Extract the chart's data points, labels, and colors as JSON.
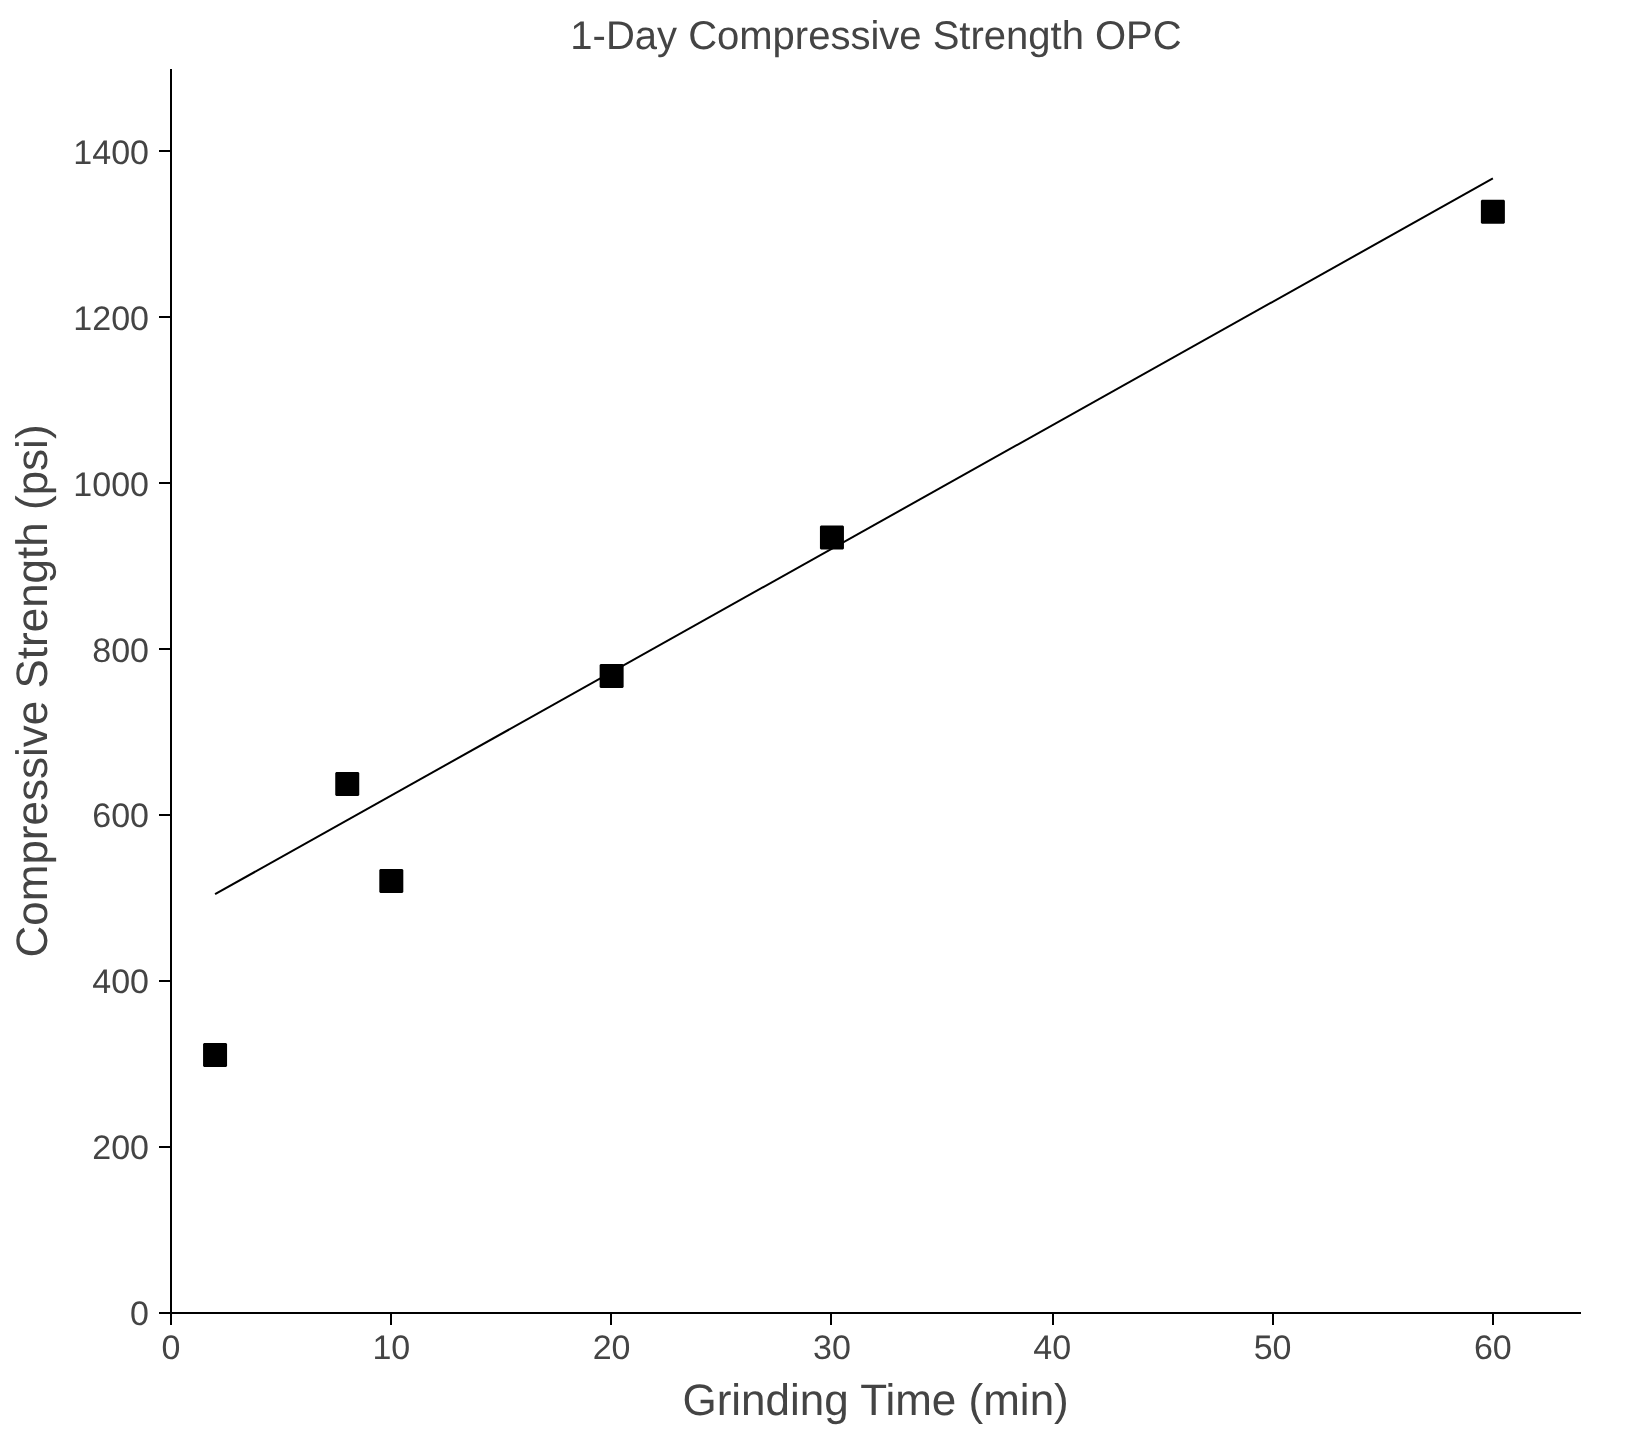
{
  "chart_data": {
    "type": "scatter",
    "title": "1-Day Compressive Strength OPC",
    "xlabel": "Grinding Time (min)",
    "ylabel": "Compressive Strength (psi)",
    "series": [
      {
        "color": "#000000",
        "x": [
          2,
          8,
          10,
          20,
          30,
          60
        ],
        "values": [
          311,
          638,
          521,
          768,
          935,
          1328
        ],
        "marker": "square"
      },
      {
        "type": "line",
        "color": "#000000",
        "x": [
          2,
          60
        ],
        "values": [
          505,
          1368
        ],
        "marker": "none",
        "line_style": "solid"
      }
    ],
    "xlim": [
      0,
      64
    ],
    "ylim": [
      0,
      1500
    ],
    "xticks": [
      0,
      10,
      20,
      30,
      40,
      50,
      60
    ],
    "yticks": [
      0,
      200,
      400,
      600,
      800,
      1000,
      1200,
      1400
    ],
    "grid": false
  }
}
